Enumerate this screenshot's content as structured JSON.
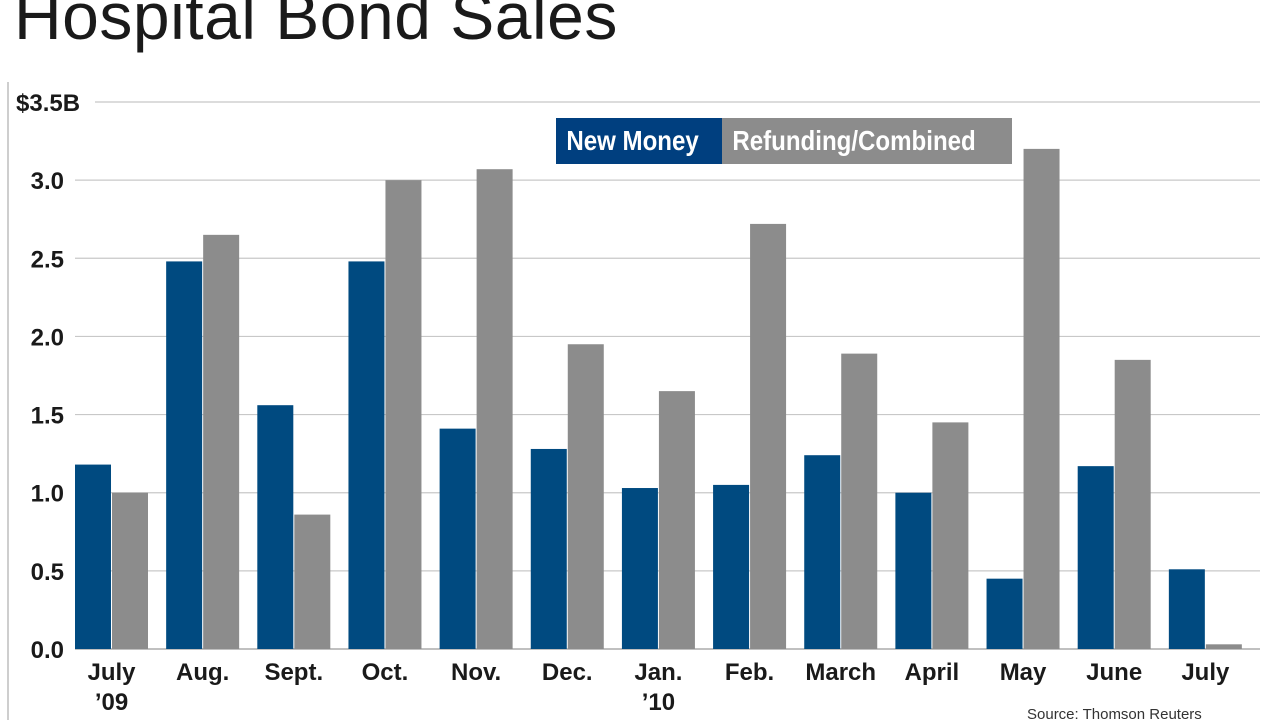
{
  "chart_data": {
    "type": "bar",
    "title": "Hospital Bond Sales",
    "categories": [
      "July '09",
      "Aug.",
      "Sept.",
      "Oct.",
      "Nov.",
      "Dec.",
      "Jan. '10",
      "Feb.",
      "March",
      "April",
      "May",
      "June",
      "July"
    ],
    "category_lines": [
      [
        "July",
        "’09"
      ],
      [
        "Aug."
      ],
      [
        "Sept."
      ],
      [
        "Oct."
      ],
      [
        "Nov."
      ],
      [
        "Dec."
      ],
      [
        "Jan.",
        "’10"
      ],
      [
        "Feb."
      ],
      [
        "March"
      ],
      [
        "April"
      ],
      [
        "May"
      ],
      [
        "June"
      ],
      [
        "July"
      ]
    ],
    "series": [
      {
        "name": "New Money",
        "color": "#004a80",
        "values": [
          1.18,
          2.48,
          1.56,
          2.48,
          1.41,
          1.28,
          1.03,
          1.05,
          1.24,
          1.0,
          0.45,
          1.17,
          0.51
        ]
      },
      {
        "name": "Refunding/Combined",
        "color": "#8c8c8c",
        "values": [
          1.0,
          2.65,
          0.86,
          3.0,
          3.07,
          1.95,
          1.65,
          2.72,
          1.89,
          1.45,
          3.2,
          1.85,
          0.03
        ]
      }
    ],
    "ylim": [
      0,
      3.5
    ],
    "y_ticks": [
      0,
      0.5,
      1.0,
      1.5,
      2.0,
      2.5,
      3.0,
      3.5
    ],
    "y_tick_labels": [
      "0.0",
      "0.5",
      "1.0",
      "1.5",
      "2.0",
      "2.5",
      "3.0",
      "$3.5B"
    ],
    "grid": true,
    "legend_position": "top-center"
  },
  "source": "Source: Thomson Reuters"
}
